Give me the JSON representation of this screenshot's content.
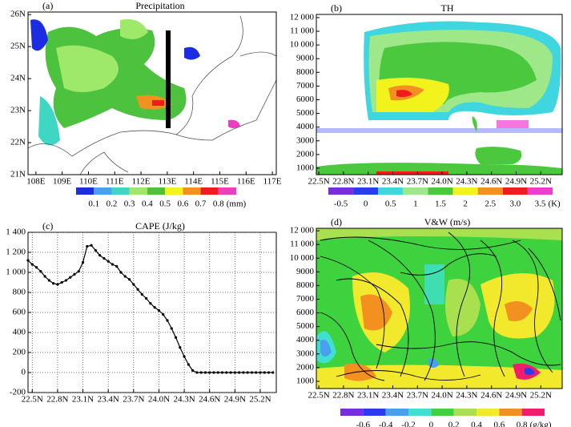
{
  "chart_data": [
    {
      "type": "map",
      "label": "(a)",
      "title": "Precipitation",
      "xlim": [
        107.7,
        117.15
      ],
      "ylim": [
        21,
        26.08
      ],
      "xticks": [
        {
          "value": 108,
          "label": "108E"
        },
        {
          "value": 109,
          "label": "109E"
        },
        {
          "value": 110,
          "label": "110E"
        },
        {
          "value": 111,
          "label": "111E"
        },
        {
          "value": 112,
          "label": "112E"
        },
        {
          "value": 113,
          "label": "113E"
        },
        {
          "value": 114,
          "label": "114E"
        },
        {
          "value": 115,
          "label": "115E"
        },
        {
          "value": 116,
          "label": "116E"
        },
        {
          "value": 117,
          "label": "117E"
        }
      ],
      "yticks": [
        {
          "value": 21,
          "label": "21N"
        },
        {
          "value": 22,
          "label": "22N"
        },
        {
          "value": 23,
          "label": "23N"
        },
        {
          "value": 24,
          "label": "24N"
        },
        {
          "value": 25,
          "label": "25N"
        },
        {
          "value": 26,
          "label": "26N"
        }
      ],
      "colorbar": {
        "colors": [
          "#1c2ce0",
          "#4aa0f0",
          "#3fd6c4",
          "#9ee86a",
          "#4cc23e",
          "#f2f21c",
          "#f29020",
          "#f01c1c",
          "#f03cc0"
        ],
        "ticks": [
          0.1,
          0.2,
          0.3,
          0.4,
          0.5,
          0.6,
          0.7,
          0.8
        ],
        "unit": "(mm)"
      }
    },
    {
      "type": "contour",
      "label": "(b)",
      "title": "TH",
      "xlim": [
        22.47,
        25.46
      ],
      "ylim": [
        530,
        12230
      ],
      "xticks": [
        {
          "value": 22.5,
          "label": "22.5N"
        },
        {
          "value": 22.8,
          "label": "22.8N"
        },
        {
          "value": 23.1,
          "label": "23.1N"
        },
        {
          "value": 23.4,
          "label": "23.4N"
        },
        {
          "value": 23.7,
          "label": "23.7N"
        },
        {
          "value": 24.0,
          "label": "24.0N"
        },
        {
          "value": 24.3,
          "label": "24.3N"
        },
        {
          "value": 24.6,
          "label": "24.6N"
        },
        {
          "value": 24.9,
          "label": "24.9N"
        },
        {
          "value": 25.2,
          "label": "25.2N"
        }
      ],
      "yticks": [
        1000,
        2000,
        3000,
        4000,
        5000,
        6000,
        7000,
        8000,
        9000,
        {
          "value": 10000,
          "label": "10 000"
        },
        {
          "value": 11000,
          "label": "11 000"
        },
        {
          "value": 12000,
          "label": "12 000"
        }
      ],
      "colorbar": {
        "colors": [
          "#7a2ce0",
          "#2a3cf0",
          "#3fd6e0",
          "#9ee88a",
          "#4cc83e",
          "#f2f21c",
          "#f29020",
          "#f01c1c",
          "#f03cd0"
        ],
        "ticks": [
          -0.5,
          0,
          0.5,
          1,
          1.5,
          2,
          2.5,
          {
            "value": 3,
            "label": "3.0"
          },
          3.5
        ],
        "unit": "(K)"
      }
    },
    {
      "type": "line",
      "label": "(c)",
      "title": "CAPE (J/kg)",
      "color": "#000000",
      "grid": true,
      "markers": true,
      "xlim": [
        22.45,
        25.39
      ],
      "ylim": [
        -200,
        1400
      ],
      "xticks": [
        {
          "value": 22.5,
          "label": "22.5N"
        },
        {
          "value": 22.8,
          "label": "22.8N"
        },
        {
          "value": 23.1,
          "label": "23.1N"
        },
        {
          "value": 23.4,
          "label": "23.4N"
        },
        {
          "value": 23.7,
          "label": "23.7N"
        },
        {
          "value": 24.0,
          "label": "24.0N"
        },
        {
          "value": 24.3,
          "label": "24.3N"
        },
        {
          "value": 24.6,
          "label": "24.6N"
        },
        {
          "value": 24.9,
          "label": "24.9N"
        },
        {
          "value": 25.2,
          "label": "25.2N"
        }
      ],
      "yticks": [
        -200,
        0,
        200,
        400,
        600,
        800,
        {
          "value": 1000,
          "label": "1 000"
        },
        {
          "value": 1200,
          "label": "1 200"
        },
        {
          "value": 1400,
          "label": "1 400"
        }
      ],
      "x": [
        22.45,
        22.5,
        22.55,
        22.6,
        22.65,
        22.7,
        22.75,
        22.8,
        22.85,
        22.9,
        22.95,
        23.0,
        23.05,
        23.1,
        23.15,
        23.2,
        23.25,
        23.3,
        23.35,
        23.4,
        23.45,
        23.5,
        23.55,
        23.6,
        23.65,
        23.7,
        23.75,
        23.8,
        23.85,
        23.9,
        23.95,
        24.0,
        24.05,
        24.1,
        24.15,
        24.2,
        24.25,
        24.3,
        24.35,
        24.4,
        24.45,
        24.5,
        24.55,
        24.6,
        24.65,
        24.7,
        24.75,
        24.8,
        24.85,
        24.9,
        24.95,
        25.0,
        25.05,
        25.1,
        25.15,
        25.2,
        25.25,
        25.3,
        25.35
      ],
      "values": [
        1120,
        1080,
        1050,
        1010,
        960,
        920,
        890,
        880,
        900,
        920,
        950,
        980,
        1010,
        1100,
        1260,
        1270,
        1220,
        1170,
        1140,
        1110,
        1080,
        1060,
        1000,
        960,
        930,
        880,
        830,
        780,
        740,
        690,
        650,
        620,
        580,
        520,
        440,
        350,
        250,
        160,
        80,
        20,
        0,
        0,
        0,
        0,
        0,
        0,
        0,
        0,
        0,
        0,
        0,
        0,
        0,
        0,
        0,
        0,
        0,
        0,
        0
      ]
    },
    {
      "type": "contour",
      "label": "(d)",
      "title": "V&W (m/s)",
      "xlim": [
        22.47,
        25.46
      ],
      "ylim": [
        470,
        12180
      ],
      "xticks": [
        {
          "value": 22.5,
          "label": "22.5N"
        },
        {
          "value": 22.8,
          "label": "22.8N"
        },
        {
          "value": 23.1,
          "label": "23.1N"
        },
        {
          "value": 23.4,
          "label": "23.4N"
        },
        {
          "value": 23.7,
          "label": "23.7N"
        },
        {
          "value": 24.0,
          "label": "24.0N"
        },
        {
          "value": 24.3,
          "label": "24.3N"
        },
        {
          "value": 24.6,
          "label": "24.6N"
        },
        {
          "value": 24.9,
          "label": "24.9N"
        },
        {
          "value": 25.2,
          "label": "25.2N"
        }
      ],
      "yticks": [
        1000,
        2000,
        3000,
        4000,
        5000,
        6000,
        7000,
        8000,
        9000,
        {
          "value": 10000,
          "label": "10 000"
        },
        {
          "value": 11000,
          "label": "11 000"
        },
        {
          "value": 12000,
          "label": "12 000"
        }
      ],
      "colorbar": {
        "colors": [
          "#7a2ce0",
          "#2a3cf0",
          "#4aa0f0",
          "#3fe0d0",
          "#3ed23e",
          "#a8e050",
          "#f2e82c",
          "#f29020",
          "#f01c6c"
        ],
        "ticks": [
          -0.6,
          -0.4,
          -0.2,
          0,
          0.2,
          0.4,
          0.6,
          0.8
        ],
        "unit": "(g/kg)"
      }
    }
  ]
}
